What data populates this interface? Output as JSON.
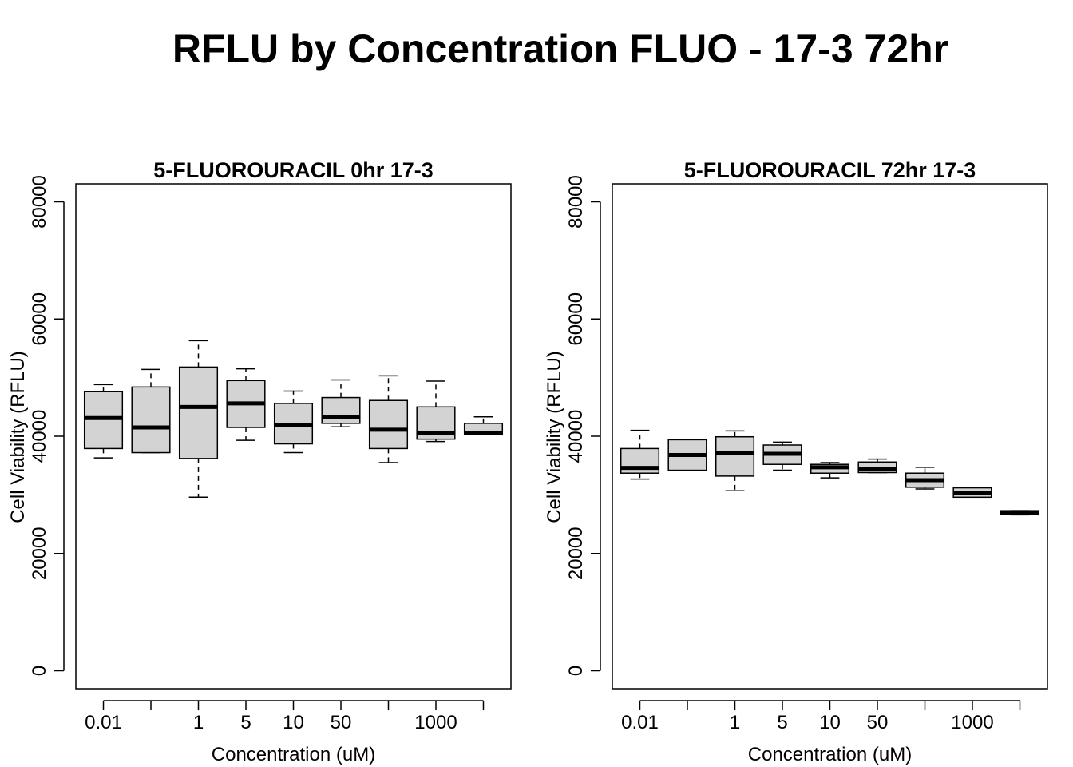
{
  "title": "RFLU by Concentration FLUO - 17-3 72hr",
  "chart_data": [
    {
      "type": "box",
      "title": "5-FLUOROURACIL 0hr 17-3",
      "xlabel": "Concentration (uM)",
      "ylabel": "Cell Viability (RFLU)",
      "ylim": [
        0,
        80000
      ],
      "yticks": [
        "0",
        "20000",
        "40000",
        "60000",
        "80000"
      ],
      "categories": [
        "0.01",
        "",
        "1",
        "5",
        "10",
        "50",
        "",
        "1000",
        ""
      ],
      "boxes": [
        {
          "min": 36300,
          "q1": 37900,
          "median": 43100,
          "q3": 47600,
          "max": 48800
        },
        {
          "min": 37200,
          "q1": 37200,
          "median": 41500,
          "q3": 48400,
          "max": 51400
        },
        {
          "min": 29600,
          "q1": 36200,
          "median": 45000,
          "q3": 51800,
          "max": 56300
        },
        {
          "min": 39300,
          "q1": 41500,
          "median": 45600,
          "q3": 49500,
          "max": 51500
        },
        {
          "min": 37200,
          "q1": 38700,
          "median": 41900,
          "q3": 45600,
          "max": 47700
        },
        {
          "min": 41600,
          "q1": 42200,
          "median": 43300,
          "q3": 46600,
          "max": 49600
        },
        {
          "min": 35500,
          "q1": 37900,
          "median": 41100,
          "q3": 46100,
          "max": 50300
        },
        {
          "min": 39100,
          "q1": 39500,
          "median": 40500,
          "q3": 45000,
          "max": 49400
        },
        {
          "min": 40300,
          "q1": 40300,
          "median": 40600,
          "q3": 42200,
          "max": 43300
        }
      ]
    },
    {
      "type": "box",
      "title": "5-FLUOROURACIL 72hr 17-3",
      "xlabel": "Concentration (uM)",
      "ylabel": "Cell Viability (RFLU)",
      "ylim": [
        0,
        80000
      ],
      "yticks": [
        "0",
        "20000",
        "40000",
        "60000",
        "80000"
      ],
      "categories": [
        "0.01",
        "",
        "1",
        "5",
        "10",
        "50",
        "",
        "1000",
        ""
      ],
      "boxes": [
        {
          "min": 32700,
          "q1": 33700,
          "median": 34600,
          "q3": 37900,
          "max": 41000
        },
        {
          "min": 34200,
          "q1": 34200,
          "median": 36800,
          "q3": 39400,
          "max": 39400
        },
        {
          "min": 30700,
          "q1": 33200,
          "median": 37200,
          "q3": 39900,
          "max": 40900
        },
        {
          "min": 34200,
          "q1": 35200,
          "median": 37000,
          "q3": 38500,
          "max": 39000
        },
        {
          "min": 32900,
          "q1": 33700,
          "median": 34700,
          "q3": 35200,
          "max": 35500
        },
        {
          "min": 33800,
          "q1": 33800,
          "median": 34400,
          "q3": 35600,
          "max": 36100
        },
        {
          "min": 31000,
          "q1": 31300,
          "median": 32500,
          "q3": 33700,
          "max": 34700
        },
        {
          "min": 29600,
          "q1": 29600,
          "median": 30400,
          "q3": 31200,
          "max": 31300
        },
        {
          "min": 26600,
          "q1": 26700,
          "median": 26900,
          "q3": 27300,
          "max": 27300
        }
      ]
    }
  ]
}
